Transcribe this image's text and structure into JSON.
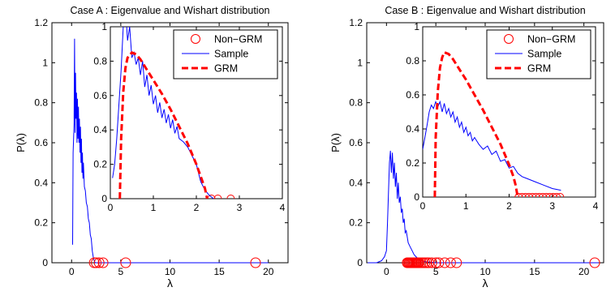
{
  "colors": {
    "sample": "#0000ff",
    "grm": "#ff0000",
    "nongrm": "#ff0000",
    "axis": "#000000",
    "background": "#ffffff"
  },
  "chart_data": [
    {
      "type": "line",
      "title": "Case A : Eigenvalue and Wishart distribution",
      "xlabel": "λ",
      "ylabel": "P(λ)",
      "xlim": [
        -2,
        22
      ],
      "ylim": [
        0,
        1.2
      ],
      "xticks": [
        "0",
        "5",
        "10",
        "15",
        "20"
      ],
      "yticks": [
        "0",
        "0.2",
        "0.4",
        "0.6",
        "0.8",
        "1",
        "1.2"
      ],
      "grid": false,
      "series": [
        {
          "name": "Sample",
          "style": "line",
          "x": [
            0.1,
            0.15,
            0.2,
            0.25,
            0.3,
            0.35,
            0.4,
            0.45,
            0.5,
            0.55,
            0.6,
            0.65,
            0.7,
            0.75,
            0.8,
            0.85,
            0.9,
            0.95,
            1.0,
            1.05,
            1.1,
            1.15,
            1.2,
            1.3,
            1.4,
            1.5,
            1.6,
            1.7,
            1.8,
            1.9,
            2.0,
            2.1,
            2.2,
            2.3,
            2.4,
            2.6,
            2.8,
            3.0,
            5.0,
            10.0,
            20.0
          ],
          "y": [
            0.09,
            0.55,
            0.62,
            0.7,
            1.12,
            0.65,
            0.95,
            0.72,
            0.85,
            0.6,
            0.82,
            0.62,
            0.78,
            0.6,
            0.72,
            0.55,
            0.68,
            0.5,
            0.62,
            0.45,
            0.55,
            0.42,
            0.5,
            0.38,
            0.36,
            0.3,
            0.28,
            0.22,
            0.2,
            0.14,
            0.12,
            0.06,
            0.03,
            0.01,
            0.0,
            0.0,
            0.0,
            0.0,
            0.0,
            0.0,
            0.0
          ]
        },
        {
          "name": "Non−GRM",
          "style": "marker",
          "x": [
            2.3,
            2.5,
            2.8,
            3.2,
            5.5,
            18.7
          ],
          "y": [
            0,
            0,
            0,
            0,
            0,
            0
          ]
        }
      ],
      "inset": {
        "xlim": [
          0,
          4
        ],
        "ylim": [
          0,
          1
        ],
        "xticks": [
          "0",
          "1",
          "2",
          "3",
          "4"
        ],
        "yticks": [
          "0",
          "0.2",
          "0.4",
          "0.6",
          "0.8",
          "1"
        ],
        "legend_position": "top-right",
        "series": [
          {
            "name": "Non−GRM",
            "style": "marker",
            "x": [
              2.35,
              2.5,
              2.8
            ],
            "y": [
              0,
              0,
              0
            ]
          },
          {
            "name": "Sample",
            "style": "line",
            "x": [
              0.05,
              0.1,
              0.15,
              0.2,
              0.25,
              0.3,
              0.35,
              0.4,
              0.45,
              0.5,
              0.55,
              0.6,
              0.65,
              0.7,
              0.75,
              0.8,
              0.85,
              0.9,
              0.95,
              1.0,
              1.05,
              1.1,
              1.15,
              1.2,
              1.25,
              1.3,
              1.35,
              1.4,
              1.45,
              1.5,
              1.55,
              1.6,
              1.7,
              1.8,
              1.9,
              2.0,
              2.1,
              2.2,
              2.3,
              2.4
            ],
            "y": [
              0.12,
              0.2,
              0.35,
              0.55,
              0.75,
              1.0,
              1.12,
              0.92,
              1.0,
              0.82,
              0.85,
              0.78,
              0.82,
              0.72,
              0.8,
              0.65,
              0.72,
              0.6,
              0.66,
              0.55,
              0.6,
              0.5,
              0.56,
              0.47,
              0.52,
              0.44,
              0.49,
              0.41,
              0.46,
              0.38,
              0.42,
              0.35,
              0.33,
              0.3,
              0.25,
              0.2,
              0.1,
              0.05,
              0.02,
              0.0
            ]
          },
          {
            "name": "GRM",
            "style": "dashed",
            "x": [
              0.22,
              0.25,
              0.3,
              0.35,
              0.4,
              0.5,
              0.6,
              0.7,
              0.8,
              0.9,
              1.0,
              1.2,
              1.4,
              1.6,
              1.8,
              2.0,
              2.1,
              2.2,
              2.25
            ],
            "y": [
              0.0,
              0.35,
              0.62,
              0.76,
              0.82,
              0.85,
              0.84,
              0.81,
              0.77,
              0.73,
              0.69,
              0.61,
              0.52,
              0.42,
              0.32,
              0.2,
              0.13,
              0.06,
              0.0
            ]
          }
        ]
      }
    },
    {
      "type": "line",
      "title": "Case B : Eigenvalue and Wishart distribution",
      "xlabel": "λ",
      "ylabel": "P(λ)",
      "xlim": [
        -2,
        22
      ],
      "ylim": [
        0,
        1.2
      ],
      "xticks": [
        "0",
        "5",
        "10",
        "15",
        "20"
      ],
      "yticks": [
        "0",
        "0.2",
        "0.4",
        "0.6",
        "0.8",
        "1",
        "1.2"
      ],
      "grid": false,
      "series": [
        {
          "name": "Sample",
          "style": "line",
          "x": [
            -1.9,
            -1.0,
            -0.5,
            -0.2,
            0.0,
            0.1,
            0.2,
            0.3,
            0.4,
            0.5,
            0.6,
            0.7,
            0.8,
            0.9,
            1.0,
            1.1,
            1.2,
            1.3,
            1.4,
            1.5,
            1.6,
            1.7,
            1.8,
            1.9,
            2.0,
            2.2,
            2.4,
            2.6,
            2.8,
            3.0,
            3.2,
            3.5,
            4.0,
            5.0,
            6.0,
            8.0,
            12.0,
            21.5
          ],
          "y": [
            0.0,
            0.0,
            0.01,
            0.03,
            0.06,
            0.2,
            0.35,
            0.5,
            0.56,
            0.45,
            0.55,
            0.42,
            0.5,
            0.38,
            0.45,
            0.32,
            0.4,
            0.3,
            0.33,
            0.25,
            0.27,
            0.2,
            0.22,
            0.15,
            0.16,
            0.1,
            0.08,
            0.06,
            0.04,
            0.03,
            0.02,
            0.01,
            0.005,
            0.0,
            0.0,
            0.0,
            0.0,
            0.0
          ]
        },
        {
          "name": "Non−GRM",
          "style": "marker",
          "x": [
            2.1,
            2.2,
            2.3,
            2.4,
            2.5,
            2.6,
            2.7,
            2.8,
            2.9,
            3.0,
            3.1,
            3.2,
            3.3,
            3.5,
            3.7,
            3.9,
            4.1,
            4.3,
            4.6,
            5.0,
            5.3,
            5.9,
            6.5,
            7.1,
            21.1
          ],
          "y": [
            0,
            0,
            0,
            0,
            0,
            0,
            0,
            0,
            0,
            0,
            0,
            0,
            0,
            0,
            0,
            0,
            0,
            0,
            0,
            0,
            0,
            0,
            0,
            0,
            0
          ]
        }
      ],
      "inset": {
        "xlim": [
          0,
          4
        ],
        "ylim": [
          0,
          1
        ],
        "xticks": [
          "0",
          "1",
          "2",
          "3",
          "4"
        ],
        "yticks": [
          "0",
          "0.2",
          "0.4",
          "0.6",
          "0.8",
          "1"
        ],
        "legend_position": "top-right",
        "series": [
          {
            "name": "Non−GRM",
            "style": "marker",
            "x": [
              2.22,
              2.3,
              2.38,
              2.46,
              2.54,
              2.62,
              2.7,
              2.78,
              2.86,
              2.94,
              3.02,
              3.1,
              3.18
            ],
            "y": [
              0,
              0,
              0,
              0,
              0,
              0,
              0,
              0,
              0,
              0,
              0,
              0,
              0
            ]
          },
          {
            "name": "Sample",
            "style": "line",
            "x": [
              0.0,
              0.05,
              0.1,
              0.15,
              0.2,
              0.25,
              0.3,
              0.35,
              0.4,
              0.45,
              0.5,
              0.55,
              0.6,
              0.65,
              0.7,
              0.75,
              0.8,
              0.85,
              0.9,
              0.95,
              1.0,
              1.05,
              1.1,
              1.15,
              1.2,
              1.3,
              1.4,
              1.5,
              1.6,
              1.7,
              1.8,
              1.9,
              2.0,
              2.1,
              2.2,
              2.3,
              2.4,
              2.6,
              2.8,
              3.0,
              3.2
            ],
            "y": [
              0.28,
              0.35,
              0.42,
              0.5,
              0.54,
              0.52,
              0.56,
              0.53,
              0.56,
              0.5,
              0.55,
              0.49,
              0.52,
              0.47,
              0.5,
              0.44,
              0.47,
              0.41,
              0.44,
              0.38,
              0.41,
              0.36,
              0.38,
              0.33,
              0.35,
              0.31,
              0.28,
              0.3,
              0.25,
              0.27,
              0.21,
              0.22,
              0.17,
              0.18,
              0.14,
              0.12,
              0.11,
              0.09,
              0.07,
              0.05,
              0.04
            ]
          },
          {
            "name": "GRM",
            "style": "dashed",
            "x": [
              0.28,
              0.3,
              0.35,
              0.4,
              0.45,
              0.5,
              0.6,
              0.7,
              0.8,
              0.9,
              1.0,
              1.2,
              1.4,
              1.6,
              1.8,
              2.0,
              2.1,
              2.15,
              2.2
            ],
            "y": [
              0.0,
              0.35,
              0.62,
              0.76,
              0.82,
              0.85,
              0.84,
              0.81,
              0.77,
              0.73,
              0.69,
              0.6,
              0.51,
              0.41,
              0.31,
              0.19,
              0.12,
              0.07,
              0.0
            ]
          }
        ]
      }
    }
  ]
}
